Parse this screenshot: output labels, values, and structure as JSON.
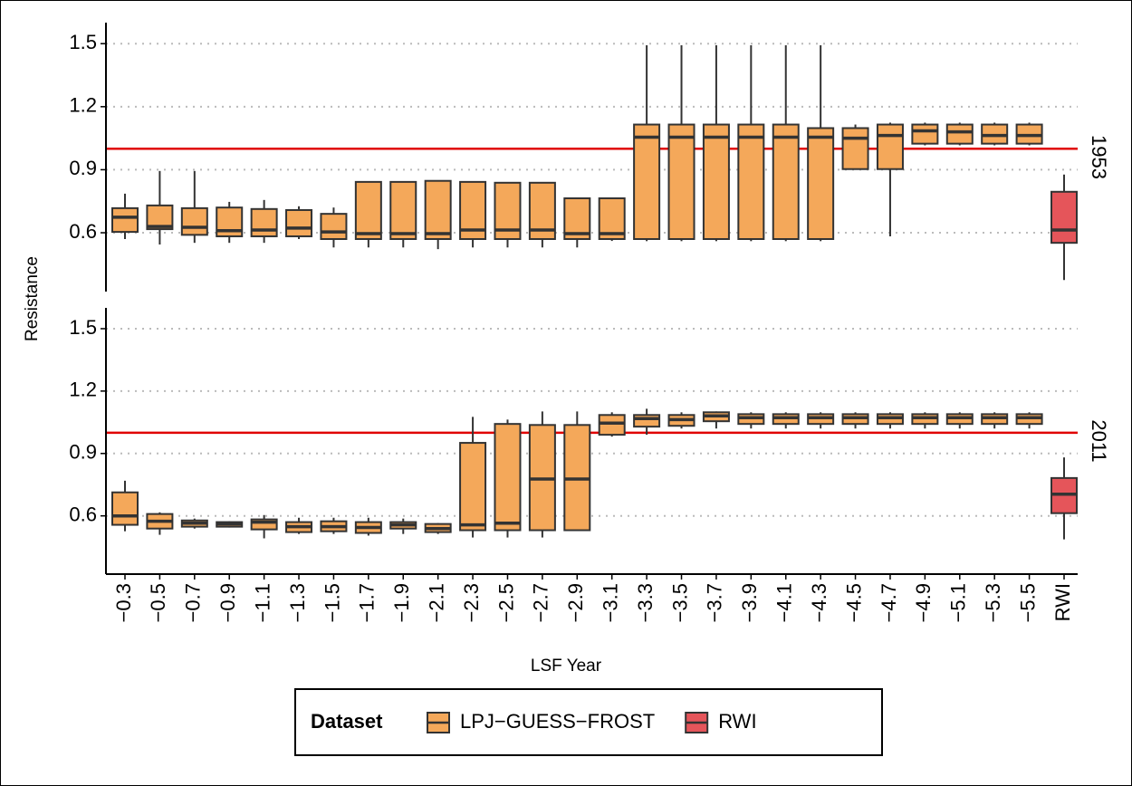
{
  "chart_data": {
    "type": "box",
    "ylabel": "Resistance",
    "xlabel": "LSF Year",
    "legend_title": "Dataset",
    "categories": [
      "−0.3",
      "−0.5",
      "−0.7",
      "−0.9",
      "−1.1",
      "−1.3",
      "−1.5",
      "−1.7",
      "−1.9",
      "−2.1",
      "−2.3",
      "−2.5",
      "−2.7",
      "−2.9",
      "−3.1",
      "−3.3",
      "−3.5",
      "−3.7",
      "−3.9",
      "−4.1",
      "−4.3",
      "−4.5",
      "−4.7",
      "−4.9",
      "−5.1",
      "−5.3",
      "−5.5",
      "RWI"
    ],
    "series": [
      {
        "name": "LPJ−GUESS−FROST",
        "color": "#f4a85a"
      },
      {
        "name": "RWI",
        "color": "#e5555a"
      }
    ],
    "ylim": [
      0.32,
      1.6
    ],
    "yticks": [
      0.6,
      0.9,
      1.2,
      1.5
    ],
    "grid": true,
    "reference_line": 1,
    "reference_color": "#e00000",
    "legend": "bottom",
    "panels": [
      {
        "label": "1953",
        "boxes": [
          {
            "dataset": 0,
            "min": 0.57,
            "q1": 0.604,
            "median": 0.674,
            "q3": 0.717,
            "max": 0.786
          },
          {
            "dataset": 0,
            "min": 0.544,
            "q1": 0.617,
            "median": 0.63,
            "q3": 0.73,
            "max": 0.894
          },
          {
            "dataset": 0,
            "min": 0.552,
            "q1": 0.59,
            "median": 0.626,
            "q3": 0.717,
            "max": 0.894
          },
          {
            "dataset": 0,
            "min": 0.552,
            "q1": 0.583,
            "median": 0.61,
            "q3": 0.72,
            "max": 0.747
          },
          {
            "dataset": 0,
            "min": 0.552,
            "q1": 0.583,
            "median": 0.613,
            "q3": 0.713,
            "max": 0.756
          },
          {
            "dataset": 0,
            "min": 0.57,
            "q1": 0.583,
            "median": 0.622,
            "q3": 0.708,
            "max": 0.726
          },
          {
            "dataset": 0,
            "min": 0.53,
            "q1": 0.57,
            "median": 0.604,
            "q3": 0.69,
            "max": 0.72
          },
          {
            "dataset": 0,
            "min": 0.53,
            "q1": 0.57,
            "median": 0.596,
            "q3": 0.842,
            "max": 0.842
          },
          {
            "dataset": 0,
            "min": 0.53,
            "q1": 0.57,
            "median": 0.596,
            "q3": 0.842,
            "max": 0.842
          },
          {
            "dataset": 0,
            "min": 0.522,
            "q1": 0.57,
            "median": 0.596,
            "q3": 0.847,
            "max": 0.847
          },
          {
            "dataset": 0,
            "min": 0.53,
            "q1": 0.57,
            "median": 0.613,
            "q3": 0.842,
            "max": 0.842
          },
          {
            "dataset": 0,
            "min": 0.53,
            "q1": 0.57,
            "median": 0.613,
            "q3": 0.838,
            "max": 0.838
          },
          {
            "dataset": 0,
            "min": 0.53,
            "q1": 0.57,
            "median": 0.613,
            "q3": 0.838,
            "max": 0.838
          },
          {
            "dataset": 0,
            "min": 0.53,
            "q1": 0.57,
            "median": 0.596,
            "q3": 0.764,
            "max": 0.764
          },
          {
            "dataset": 0,
            "min": 0.561,
            "q1": 0.57,
            "median": 0.596,
            "q3": 0.764,
            "max": 0.764
          },
          {
            "dataset": 0,
            "min": 0.56,
            "q1": 0.57,
            "median": 1.055,
            "q3": 1.115,
            "max": 1.492
          },
          {
            "dataset": 0,
            "min": 0.56,
            "q1": 0.57,
            "median": 1.055,
            "q3": 1.115,
            "max": 1.492
          },
          {
            "dataset": 0,
            "min": 0.56,
            "q1": 0.57,
            "median": 1.055,
            "q3": 1.115,
            "max": 1.492
          },
          {
            "dataset": 0,
            "min": 0.56,
            "q1": 0.57,
            "median": 1.055,
            "q3": 1.115,
            "max": 1.492
          },
          {
            "dataset": 0,
            "min": 0.56,
            "q1": 0.57,
            "median": 1.055,
            "q3": 1.115,
            "max": 1.492
          },
          {
            "dataset": 0,
            "min": 0.56,
            "q1": 0.57,
            "median": 1.055,
            "q3": 1.098,
            "max": 1.492
          },
          {
            "dataset": 0,
            "min": 0.903,
            "q1": 0.903,
            "median": 1.05,
            "q3": 1.098,
            "max": 1.115
          },
          {
            "dataset": 0,
            "min": 0.583,
            "q1": 0.903,
            "median": 1.063,
            "q3": 1.115,
            "max": 1.124
          },
          {
            "dataset": 0,
            "min": 1.016,
            "q1": 1.024,
            "median": 1.085,
            "q3": 1.115,
            "max": 1.124
          },
          {
            "dataset": 0,
            "min": 1.016,
            "q1": 1.024,
            "median": 1.08,
            "q3": 1.115,
            "max": 1.124
          },
          {
            "dataset": 0,
            "min": 1.016,
            "q1": 1.024,
            "median": 1.063,
            "q3": 1.115,
            "max": 1.124
          },
          {
            "dataset": 0,
            "min": 1.016,
            "q1": 1.024,
            "median": 1.063,
            "q3": 1.115,
            "max": 1.124
          },
          {
            "dataset": 1,
            "min": 0.375,
            "q1": 0.552,
            "median": 0.613,
            "q3": 0.795,
            "max": 0.877
          }
        ]
      },
      {
        "label": "2011",
        "boxes": [
          {
            "dataset": 0,
            "min": 0.526,
            "q1": 0.557,
            "median": 0.6,
            "q3": 0.713,
            "max": 0.769
          },
          {
            "dataset": 0,
            "min": 0.509,
            "q1": 0.539,
            "median": 0.574,
            "q3": 0.609,
            "max": 0.617
          },
          {
            "dataset": 0,
            "min": 0.539,
            "q1": 0.548,
            "median": 0.565,
            "q3": 0.578,
            "max": 0.587
          },
          {
            "dataset": 0,
            "min": 0.544,
            "q1": 0.548,
            "median": 0.561,
            "q3": 0.57,
            "max": 0.574
          },
          {
            "dataset": 0,
            "min": 0.492,
            "q1": 0.535,
            "median": 0.57,
            "q3": 0.583,
            "max": 0.604
          },
          {
            "dataset": 0,
            "min": 0.513,
            "q1": 0.522,
            "median": 0.548,
            "q3": 0.57,
            "max": 0.591
          },
          {
            "dataset": 0,
            "min": 0.513,
            "q1": 0.526,
            "median": 0.548,
            "q3": 0.574,
            "max": 0.591
          },
          {
            "dataset": 0,
            "min": 0.505,
            "q1": 0.518,
            "median": 0.544,
            "q3": 0.57,
            "max": 0.591
          },
          {
            "dataset": 0,
            "min": 0.513,
            "q1": 0.539,
            "median": 0.557,
            "q3": 0.57,
            "max": 0.587
          },
          {
            "dataset": 0,
            "min": 0.513,
            "q1": 0.522,
            "median": 0.539,
            "q3": 0.561,
            "max": 0.565
          },
          {
            "dataset": 0,
            "min": 0.496,
            "q1": 0.531,
            "median": 0.557,
            "q3": 0.951,
            "max": 1.076
          },
          {
            "dataset": 0,
            "min": 0.496,
            "q1": 0.531,
            "median": 0.565,
            "q3": 1.042,
            "max": 1.063
          },
          {
            "dataset": 0,
            "min": 0.496,
            "q1": 0.531,
            "median": 0.777,
            "q3": 1.037,
            "max": 1.102
          },
          {
            "dataset": 0,
            "min": 0.531,
            "q1": 0.531,
            "median": 0.777,
            "q3": 1.037,
            "max": 1.102
          },
          {
            "dataset": 0,
            "min": 0.981,
            "q1": 0.99,
            "median": 1.046,
            "q3": 1.085,
            "max": 1.098
          },
          {
            "dataset": 0,
            "min": 0.99,
            "q1": 1.029,
            "median": 1.068,
            "q3": 1.085,
            "max": 1.115
          },
          {
            "dataset": 0,
            "min": 1.02,
            "q1": 1.033,
            "median": 1.063,
            "q3": 1.085,
            "max": 1.098
          },
          {
            "dataset": 0,
            "min": 1.02,
            "q1": 1.055,
            "median": 1.081,
            "q3": 1.098,
            "max": 1.102
          },
          {
            "dataset": 0,
            "min": 1.02,
            "q1": 1.042,
            "median": 1.072,
            "q3": 1.089,
            "max": 1.098
          },
          {
            "dataset": 0,
            "min": 1.02,
            "q1": 1.042,
            "median": 1.072,
            "q3": 1.089,
            "max": 1.098
          },
          {
            "dataset": 0,
            "min": 1.02,
            "q1": 1.042,
            "median": 1.072,
            "q3": 1.089,
            "max": 1.098
          },
          {
            "dataset": 0,
            "min": 1.02,
            "q1": 1.042,
            "median": 1.072,
            "q3": 1.089,
            "max": 1.098
          },
          {
            "dataset": 0,
            "min": 1.02,
            "q1": 1.042,
            "median": 1.072,
            "q3": 1.089,
            "max": 1.098
          },
          {
            "dataset": 0,
            "min": 1.02,
            "q1": 1.042,
            "median": 1.072,
            "q3": 1.089,
            "max": 1.098
          },
          {
            "dataset": 0,
            "min": 1.02,
            "q1": 1.042,
            "median": 1.072,
            "q3": 1.089,
            "max": 1.098
          },
          {
            "dataset": 0,
            "min": 1.02,
            "q1": 1.042,
            "median": 1.072,
            "q3": 1.089,
            "max": 1.098
          },
          {
            "dataset": 0,
            "min": 1.02,
            "q1": 1.042,
            "median": 1.072,
            "q3": 1.089,
            "max": 1.098
          },
          {
            "dataset": 1,
            "min": 0.487,
            "q1": 0.613,
            "median": 0.704,
            "q3": 0.782,
            "max": 0.881
          }
        ]
      }
    ]
  }
}
